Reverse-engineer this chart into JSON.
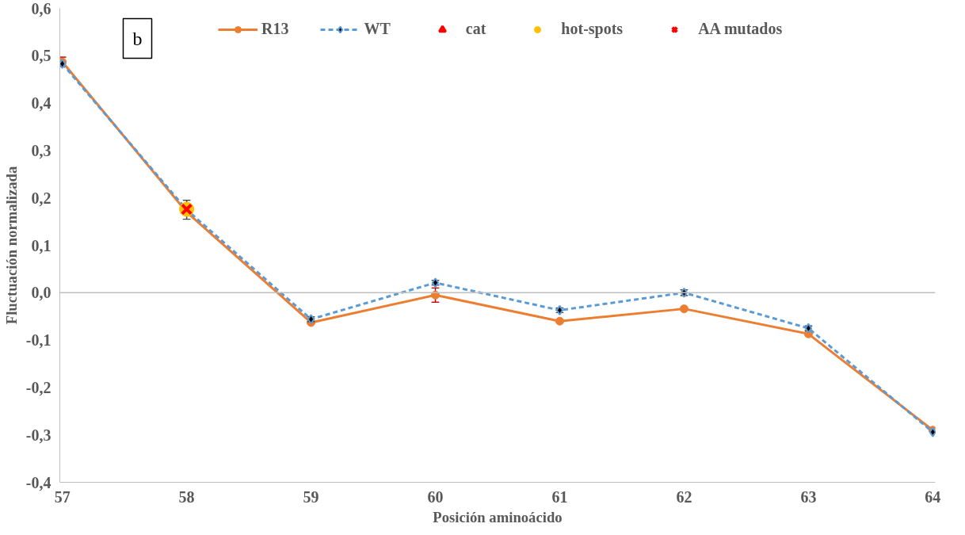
{
  "chart_data": {
    "type": "line",
    "xlabel": "Posición aminoácido",
    "ylabel": "Fluctuación normalizada",
    "annotations": [
      "b"
    ],
    "categories": [
      "57",
      "58",
      "59",
      "60",
      "61",
      "62",
      "63",
      "64"
    ],
    "series": [
      {
        "name": "R13",
        "color": "#ed7d31",
        "marker": "circle",
        "line_style": "solid",
        "values": [
          0.487,
          0.17,
          -0.063,
          -0.005,
          -0.06,
          -0.034,
          -0.087,
          -0.29
        ],
        "errors": [
          0.01,
          null,
          null,
          0.015,
          null,
          null,
          null,
          null
        ]
      },
      {
        "name": "WT",
        "color": "#5b9bd5",
        "marker": "diamond",
        "line_style": "dashed",
        "values": [
          0.483,
          0.175,
          -0.056,
          0.021,
          -0.037,
          0.0,
          -0.075,
          -0.294
        ],
        "errors": [
          null,
          0.02,
          0.005,
          0.005,
          0.005,
          0.006,
          0.005,
          null
        ]
      },
      {
        "name": "cat",
        "type": "scatter",
        "color": "#ff0000",
        "marker": "triangle",
        "values": [
          null,
          null,
          null,
          null,
          null,
          null,
          null,
          null
        ]
      },
      {
        "name": "hot-spots",
        "type": "scatter",
        "color": "#ffc000",
        "marker": "circle",
        "values": [
          null,
          0.176,
          null,
          null,
          null,
          null,
          null,
          null
        ]
      },
      {
        "name": "AA mutados",
        "type": "scatter",
        "color": "#ff0000",
        "marker": "cross",
        "values": [
          null,
          0.176,
          null,
          null,
          null,
          null,
          null,
          null
        ]
      }
    ],
    "ylim": [
      -0.4,
      0.6
    ],
    "yticks": [
      {
        "value": -0.4,
        "label": "-0,4"
      },
      {
        "value": -0.3,
        "label": "-0,3"
      },
      {
        "value": -0.2,
        "label": "-0,2"
      },
      {
        "value": -0.1,
        "label": "-0,1"
      },
      {
        "value": 0,
        "label": "0,0"
      },
      {
        "value": 0.1,
        "label": "0,1"
      },
      {
        "value": 0.2,
        "label": "0,2"
      },
      {
        "value": 0.3,
        "label": "0,3"
      },
      {
        "value": 0.4,
        "label": "0,4"
      },
      {
        "value": 0.5,
        "label": "0,5"
      },
      {
        "value": 0.6,
        "label": "0,6"
      }
    ],
    "ref_lines": [
      {
        "axis": "y",
        "value": 0,
        "color": "#bfbfbf"
      }
    ],
    "grid": false,
    "legend": "top"
  }
}
